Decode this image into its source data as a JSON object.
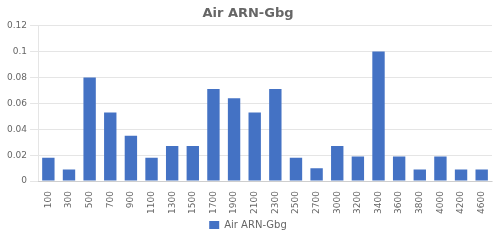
{
  "chart_data": {
    "type": "bar",
    "title": "Air ARN-Gbg",
    "categories": [
      "100",
      "300",
      "500",
      "700",
      "900",
      "1100",
      "1300",
      "1500",
      "1700",
      "1900",
      "2100",
      "2300",
      "2500",
      "2700",
      "3000",
      "3200",
      "3400",
      "3600",
      "3800",
      "4000",
      "4200",
      "4600"
    ],
    "series": [
      {
        "name": "Air ARN-Gbg",
        "color": "#4472C4",
        "values": [
          0.018,
          0.009,
          0.08,
          0.053,
          0.035,
          0.018,
          0.027,
          0.027,
          0.071,
          0.064,
          0.053,
          0.071,
          0.018,
          0.01,
          0.027,
          0.019,
          0.1,
          0.019,
          0.009,
          0.019,
          0.009,
          0.009
        ]
      }
    ],
    "ylim": [
      0,
      0.12
    ],
    "yticks": [
      0,
      0.02,
      0.04,
      0.06,
      0.08,
      0.1,
      0.12
    ],
    "grid": true,
    "legend": "bottom"
  }
}
